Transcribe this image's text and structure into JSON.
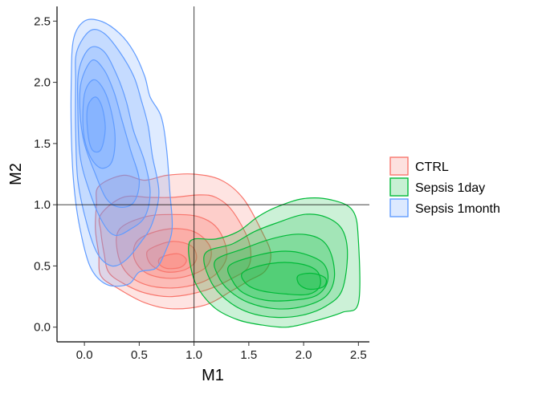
{
  "chart_data": {
    "type": "contour-density",
    "xlabel": "M1",
    "ylabel": "M2",
    "xlim": [
      -0.25,
      2.6
    ],
    "ylim": [
      -0.12,
      2.62
    ],
    "x_ticks": [
      0.0,
      0.5,
      1.0,
      1.5,
      2.0,
      2.5
    ],
    "x_tick_labels": [
      "0.0",
      "0.5",
      "1.0",
      "1.5",
      "2.0",
      "2.5"
    ],
    "y_ticks": [
      0.0,
      0.5,
      1.0,
      1.5,
      2.0,
      2.5
    ],
    "y_tick_labels": [
      "0.0",
      "0.5",
      "1.0",
      "1.5",
      "2.0",
      "2.5"
    ],
    "reference_lines": {
      "x": 1.0,
      "y": 1.0
    },
    "grid": false,
    "legend_position": "right",
    "series": [
      {
        "name": "CTRL",
        "color": "#F8766D",
        "fill": "#F8766D",
        "peak": [
          0.82,
          0.5
        ],
        "levels": [
          [
            [
              0.13,
              1.15
            ],
            [
              0.35,
              1.24
            ],
            [
              0.55,
              1.2
            ],
            [
              0.75,
              1.24
            ],
            [
              1.0,
              1.25
            ],
            [
              1.25,
              1.2
            ],
            [
              1.45,
              1.05
            ],
            [
              1.62,
              0.78
            ],
            [
              1.7,
              0.6
            ],
            [
              1.65,
              0.46
            ],
            [
              1.5,
              0.38
            ],
            [
              1.35,
              0.3
            ],
            [
              1.1,
              0.18
            ],
            [
              0.8,
              0.15
            ],
            [
              0.55,
              0.2
            ],
            [
              0.3,
              0.32
            ],
            [
              0.15,
              0.42
            ],
            [
              0.13,
              0.6
            ],
            [
              0.1,
              0.8
            ],
            [
              0.11,
              1.0
            ]
          ],
          [
            [
              0.15,
              0.92
            ],
            [
              0.35,
              1.06
            ],
            [
              0.6,
              1.06
            ],
            [
              0.8,
              1.06
            ],
            [
              1.05,
              1.08
            ],
            [
              1.2,
              1.06
            ],
            [
              1.35,
              0.95
            ],
            [
              1.5,
              0.7
            ],
            [
              1.5,
              0.5
            ],
            [
              1.35,
              0.4
            ],
            [
              1.1,
              0.3
            ],
            [
              0.8,
              0.25
            ],
            [
              0.55,
              0.28
            ],
            [
              0.35,
              0.36
            ],
            [
              0.22,
              0.45
            ],
            [
              0.18,
              0.6
            ],
            [
              0.15,
              0.78
            ]
          ],
          [
            [
              0.32,
              0.8
            ],
            [
              0.55,
              0.9
            ],
            [
              0.8,
              0.92
            ],
            [
              1.05,
              0.9
            ],
            [
              1.22,
              0.8
            ],
            [
              1.3,
              0.6
            ],
            [
              1.22,
              0.45
            ],
            [
              1.05,
              0.36
            ],
            [
              0.8,
              0.32
            ],
            [
              0.55,
              0.35
            ],
            [
              0.38,
              0.45
            ],
            [
              0.3,
              0.62
            ]
          ],
          [
            [
              0.5,
              0.72
            ],
            [
              0.75,
              0.8
            ],
            [
              1.0,
              0.78
            ],
            [
              1.15,
              0.65
            ],
            [
              1.12,
              0.5
            ],
            [
              0.95,
              0.42
            ],
            [
              0.75,
              0.4
            ],
            [
              0.55,
              0.45
            ],
            [
              0.45,
              0.58
            ]
          ],
          [
            [
              0.6,
              0.64
            ],
            [
              0.8,
              0.7
            ],
            [
              0.98,
              0.66
            ],
            [
              1.02,
              0.55
            ],
            [
              0.92,
              0.47
            ],
            [
              0.75,
              0.45
            ],
            [
              0.62,
              0.5
            ],
            [
              0.57,
              0.58
            ]
          ],
          [
            [
              0.7,
              0.57
            ],
            [
              0.85,
              0.6
            ],
            [
              0.93,
              0.55
            ],
            [
              0.88,
              0.49
            ],
            [
              0.75,
              0.48
            ],
            [
              0.68,
              0.52
            ]
          ]
        ]
      },
      {
        "name": "Sepsis 1day",
        "color": "#00BA38",
        "fill": "#00BA38",
        "peak": [
          2.05,
          0.38
        ],
        "levels": [
          [
            [
              0.95,
              0.65
            ],
            [
              1.0,
              0.72
            ],
            [
              1.2,
              0.72
            ],
            [
              1.4,
              0.78
            ],
            [
              1.58,
              0.9
            ],
            [
              1.75,
              0.98
            ],
            [
              2.0,
              1.05
            ],
            [
              2.25,
              1.04
            ],
            [
              2.45,
              0.95
            ],
            [
              2.5,
              0.7
            ],
            [
              2.5,
              0.2
            ],
            [
              2.35,
              0.12
            ],
            [
              2.1,
              0.05
            ],
            [
              1.85,
              0.0
            ],
            [
              1.6,
              0.02
            ],
            [
              1.4,
              0.06
            ],
            [
              1.2,
              0.15
            ],
            [
              1.05,
              0.3
            ],
            [
              0.98,
              0.45
            ]
          ],
          [
            [
              1.1,
              0.6
            ],
            [
              1.35,
              0.68
            ],
            [
              1.55,
              0.78
            ],
            [
              1.75,
              0.85
            ],
            [
              2.0,
              0.92
            ],
            [
              2.2,
              0.9
            ],
            [
              2.35,
              0.8
            ],
            [
              2.4,
              0.6
            ],
            [
              2.35,
              0.3
            ],
            [
              2.2,
              0.17
            ],
            [
              2.0,
              0.1
            ],
            [
              1.75,
              0.08
            ],
            [
              1.5,
              0.12
            ],
            [
              1.3,
              0.22
            ],
            [
              1.15,
              0.38
            ]
          ],
          [
            [
              1.2,
              0.55
            ],
            [
              1.45,
              0.64
            ],
            [
              1.7,
              0.72
            ],
            [
              1.95,
              0.76
            ],
            [
              2.15,
              0.72
            ],
            [
              2.25,
              0.6
            ],
            [
              2.28,
              0.4
            ],
            [
              2.2,
              0.25
            ],
            [
              2.0,
              0.17
            ],
            [
              1.75,
              0.15
            ],
            [
              1.5,
              0.2
            ],
            [
              1.32,
              0.3
            ],
            [
              1.22,
              0.42
            ]
          ],
          [
            [
              1.32,
              0.5
            ],
            [
              1.55,
              0.58
            ],
            [
              1.8,
              0.62
            ],
            [
              2.0,
              0.6
            ],
            [
              2.18,
              0.52
            ],
            [
              2.22,
              0.38
            ],
            [
              2.12,
              0.26
            ],
            [
              1.9,
              0.22
            ],
            [
              1.65,
              0.22
            ],
            [
              1.45,
              0.28
            ],
            [
              1.35,
              0.38
            ]
          ],
          [
            [
              1.45,
              0.45
            ],
            [
              1.7,
              0.52
            ],
            [
              1.95,
              0.52
            ],
            [
              2.12,
              0.46
            ],
            [
              2.15,
              0.34
            ],
            [
              2.05,
              0.27
            ],
            [
              1.85,
              0.27
            ],
            [
              1.6,
              0.3
            ],
            [
              1.47,
              0.36
            ]
          ],
          [
            [
              1.95,
              0.42
            ],
            [
              2.08,
              0.44
            ],
            [
              2.2,
              0.4
            ],
            [
              2.18,
              0.33
            ],
            [
              2.05,
              0.31
            ],
            [
              1.96,
              0.35
            ]
          ]
        ]
      },
      {
        "name": "Sepsis 1month",
        "color": "#619CFF",
        "fill": "#619CFF",
        "peak": [
          0.1,
          1.65
        ],
        "levels": [
          [
            [
              -0.1,
              2.35
            ],
            [
              0.0,
              2.5
            ],
            [
              0.15,
              2.5
            ],
            [
              0.32,
              2.4
            ],
            [
              0.45,
              2.25
            ],
            [
              0.55,
              2.05
            ],
            [
              0.6,
              1.88
            ],
            [
              0.7,
              1.72
            ],
            [
              0.75,
              1.45
            ],
            [
              0.78,
              1.1
            ],
            [
              0.8,
              0.8
            ],
            [
              0.73,
              0.6
            ],
            [
              0.65,
              0.48
            ],
            [
              0.5,
              0.45
            ],
            [
              0.4,
              0.35
            ],
            [
              0.2,
              0.35
            ],
            [
              0.05,
              0.5
            ],
            [
              -0.05,
              0.85
            ],
            [
              -0.1,
              1.2
            ],
            [
              -0.12,
              1.6
            ],
            [
              -0.12,
              2.0
            ]
          ],
          [
            [
              -0.07,
              2.25
            ],
            [
              0.05,
              2.42
            ],
            [
              0.18,
              2.4
            ],
            [
              0.32,
              2.25
            ],
            [
              0.45,
              2.05
            ],
            [
              0.52,
              1.85
            ],
            [
              0.58,
              1.65
            ],
            [
              0.62,
              1.4
            ],
            [
              0.68,
              1.1
            ],
            [
              0.62,
              0.85
            ],
            [
              0.52,
              0.7
            ],
            [
              0.38,
              0.55
            ],
            [
              0.25,
              0.5
            ],
            [
              0.12,
              0.6
            ],
            [
              0.02,
              0.85
            ],
            [
              -0.06,
              1.2
            ],
            [
              -0.08,
              1.6
            ],
            [
              -0.08,
              2.0
            ]
          ],
          [
            [
              -0.05,
              2.1
            ],
            [
              0.05,
              2.28
            ],
            [
              0.18,
              2.25
            ],
            [
              0.3,
              2.05
            ],
            [
              0.38,
              1.85
            ],
            [
              0.45,
              1.6
            ],
            [
              0.55,
              1.35
            ],
            [
              0.6,
              1.1
            ],
            [
              0.55,
              0.9
            ],
            [
              0.42,
              0.8
            ],
            [
              0.28,
              0.75
            ],
            [
              0.17,
              0.85
            ],
            [
              0.05,
              1.1
            ],
            [
              -0.04,
              1.4
            ],
            [
              -0.06,
              1.8
            ]
          ],
          [
            [
              -0.03,
              2.0
            ],
            [
              0.07,
              2.18
            ],
            [
              0.18,
              2.1
            ],
            [
              0.27,
              1.92
            ],
            [
              0.34,
              1.7
            ],
            [
              0.42,
              1.45
            ],
            [
              0.5,
              1.2
            ],
            [
              0.45,
              1.02
            ],
            [
              0.32,
              0.98
            ],
            [
              0.2,
              1.05
            ],
            [
              0.1,
              1.25
            ],
            [
              0.0,
              1.5
            ],
            [
              -0.04,
              1.75
            ]
          ],
          [
            [
              0.0,
              1.9
            ],
            [
              0.08,
              2.02
            ],
            [
              0.17,
              1.95
            ],
            [
              0.24,
              1.78
            ],
            [
              0.28,
              1.55
            ],
            [
              0.25,
              1.35
            ],
            [
              0.15,
              1.3
            ],
            [
              0.05,
              1.4
            ],
            [
              -0.01,
              1.6
            ]
          ],
          [
            [
              0.03,
              1.8
            ],
            [
              0.1,
              1.88
            ],
            [
              0.16,
              1.8
            ],
            [
              0.19,
              1.62
            ],
            [
              0.15,
              1.45
            ],
            [
              0.07,
              1.45
            ],
            [
              0.03,
              1.6
            ]
          ]
        ]
      }
    ]
  },
  "legend": {
    "items": [
      {
        "label": "CTRL",
        "color": "#F8766D"
      },
      {
        "label": "Sepsis 1day",
        "color": "#00BA38"
      },
      {
        "label": "Sepsis 1month",
        "color": "#619CFF"
      }
    ]
  }
}
